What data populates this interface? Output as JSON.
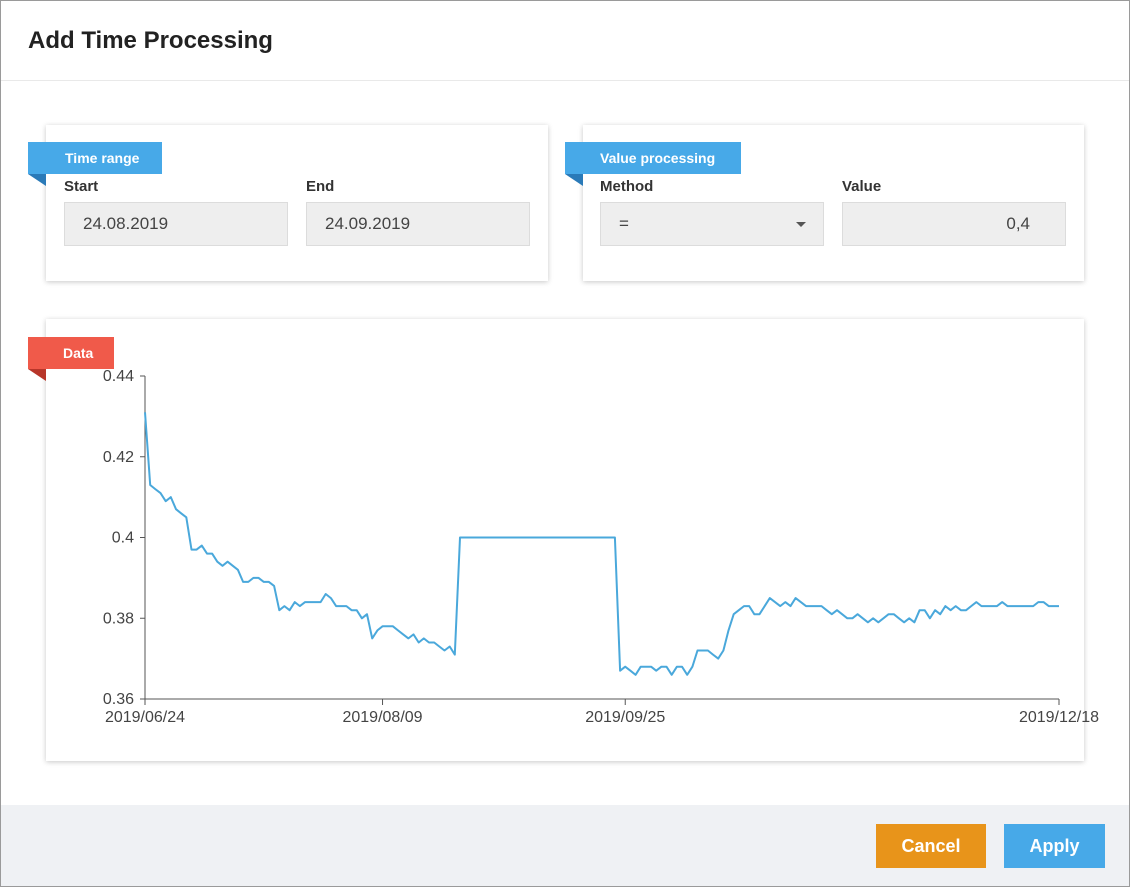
{
  "dialog": {
    "title": "Add Time Processing"
  },
  "time_range": {
    "tag": "Time range",
    "start_label": "Start",
    "start_value": "24.08.2019",
    "end_label": "End",
    "end_value": "24.09.2019"
  },
  "value_processing": {
    "tag": "Value processing",
    "method_label": "Method",
    "method_value": "=",
    "value_label": "Value",
    "value_value": "0,4"
  },
  "data_panel": {
    "tag": "Data"
  },
  "footer": {
    "cancel_label": "Cancel",
    "apply_label": "Apply"
  },
  "colors": {
    "accent_blue": "#47a9e8",
    "data_red": "#f05a4a",
    "cancel_orange": "#e8941a",
    "line": "#4aa8db"
  },
  "chart_data": {
    "type": "line",
    "title": "",
    "xlabel": "",
    "ylabel": "",
    "x_ticks": [
      "2019/06/24",
      "2019/08/09",
      "2019/09/25",
      "2019/12/18"
    ],
    "y_ticks": [
      "0.36",
      "0.38",
      "0.4",
      "0.42",
      "0.44"
    ],
    "ylim": [
      0.36,
      0.44
    ],
    "xlim": [
      "2019-06-24",
      "2019-12-18"
    ],
    "grid": false,
    "series": [
      {
        "x": [
          "2019-06-24",
          "2019-06-25",
          "2019-06-26",
          "2019-06-27",
          "2019-06-28",
          "2019-06-29",
          "2019-06-30",
          "2019-07-01",
          "2019-07-02",
          "2019-07-03",
          "2019-07-04",
          "2019-07-05",
          "2019-07-06",
          "2019-07-07",
          "2019-07-08",
          "2019-07-09",
          "2019-07-10",
          "2019-07-11",
          "2019-07-12",
          "2019-07-13",
          "2019-07-14",
          "2019-07-15",
          "2019-07-16",
          "2019-07-17",
          "2019-07-18",
          "2019-07-19",
          "2019-07-20",
          "2019-07-21",
          "2019-07-22",
          "2019-07-23",
          "2019-07-24",
          "2019-07-25",
          "2019-07-26",
          "2019-07-27",
          "2019-07-28",
          "2019-07-29",
          "2019-07-30",
          "2019-07-31",
          "2019-08-01",
          "2019-08-02",
          "2019-08-03",
          "2019-08-04",
          "2019-08-05",
          "2019-08-06",
          "2019-08-07",
          "2019-08-08",
          "2019-08-09",
          "2019-08-10",
          "2019-08-11",
          "2019-08-12",
          "2019-08-13",
          "2019-08-14",
          "2019-08-15",
          "2019-08-16",
          "2019-08-17",
          "2019-08-18",
          "2019-08-19",
          "2019-08-20",
          "2019-08-21",
          "2019-08-22",
          "2019-08-23",
          "2019-08-24",
          "2019-09-23",
          "2019-09-24",
          "2019-09-25",
          "2019-09-26",
          "2019-09-27",
          "2019-09-28",
          "2019-09-29",
          "2019-09-30",
          "2019-10-01",
          "2019-10-02",
          "2019-10-03",
          "2019-10-04",
          "2019-10-05",
          "2019-10-06",
          "2019-10-07",
          "2019-10-08",
          "2019-10-09",
          "2019-10-10",
          "2019-10-11",
          "2019-10-12",
          "2019-10-13",
          "2019-10-14",
          "2019-10-15",
          "2019-10-16",
          "2019-10-17",
          "2019-10-18",
          "2019-10-19",
          "2019-10-20",
          "2019-10-21",
          "2019-10-22",
          "2019-10-23",
          "2019-10-24",
          "2019-10-25",
          "2019-10-26",
          "2019-10-27",
          "2019-10-28",
          "2019-10-29",
          "2019-10-30",
          "2019-10-31",
          "2019-11-01",
          "2019-11-02",
          "2019-11-03",
          "2019-11-04",
          "2019-11-05",
          "2019-11-06",
          "2019-11-07",
          "2019-11-08",
          "2019-11-09",
          "2019-11-10",
          "2019-11-11",
          "2019-11-12",
          "2019-11-13",
          "2019-11-14",
          "2019-11-15",
          "2019-11-16",
          "2019-11-17",
          "2019-11-18",
          "2019-11-19",
          "2019-11-20",
          "2019-11-21",
          "2019-11-22",
          "2019-11-23",
          "2019-11-24",
          "2019-11-25",
          "2019-11-26",
          "2019-11-27",
          "2019-11-28",
          "2019-11-29",
          "2019-11-30",
          "2019-12-01",
          "2019-12-02",
          "2019-12-03",
          "2019-12-04",
          "2019-12-05",
          "2019-12-06",
          "2019-12-07",
          "2019-12-08",
          "2019-12-09",
          "2019-12-10",
          "2019-12-11",
          "2019-12-12",
          "2019-12-13",
          "2019-12-14",
          "2019-12-15",
          "2019-12-16",
          "2019-12-17",
          "2019-12-18"
        ],
        "y": [
          0.431,
          0.413,
          0.412,
          0.411,
          0.409,
          0.41,
          0.407,
          0.406,
          0.405,
          0.397,
          0.397,
          0.398,
          0.396,
          0.396,
          0.394,
          0.393,
          0.394,
          0.393,
          0.392,
          0.389,
          0.389,
          0.39,
          0.39,
          0.389,
          0.389,
          0.388,
          0.382,
          0.383,
          0.382,
          0.384,
          0.383,
          0.384,
          0.384,
          0.384,
          0.384,
          0.386,
          0.385,
          0.383,
          0.383,
          0.383,
          0.382,
          0.382,
          0.38,
          0.381,
          0.375,
          0.377,
          0.378,
          0.378,
          0.378,
          0.377,
          0.376,
          0.375,
          0.376,
          0.374,
          0.375,
          0.374,
          0.374,
          0.373,
          0.372,
          0.373,
          0.371,
          0.4,
          0.4,
          0.367,
          0.368,
          0.367,
          0.366,
          0.368,
          0.368,
          0.368,
          0.367,
          0.368,
          0.368,
          0.366,
          0.368,
          0.368,
          0.366,
          0.368,
          0.372,
          0.372,
          0.372,
          0.371,
          0.37,
          0.372,
          0.377,
          0.381,
          0.382,
          0.383,
          0.383,
          0.381,
          0.381,
          0.383,
          0.385,
          0.384,
          0.383,
          0.384,
          0.383,
          0.385,
          0.384,
          0.383,
          0.383,
          0.383,
          0.383,
          0.382,
          0.381,
          0.382,
          0.381,
          0.38,
          0.38,
          0.381,
          0.38,
          0.379,
          0.38,
          0.379,
          0.38,
          0.381,
          0.381,
          0.38,
          0.379,
          0.38,
          0.379,
          0.382,
          0.382,
          0.38,
          0.382,
          0.381,
          0.383,
          0.382,
          0.383,
          0.382,
          0.382,
          0.383,
          0.384,
          0.383,
          0.383,
          0.383,
          0.383,
          0.384,
          0.383,
          0.383,
          0.383,
          0.383,
          0.383,
          0.383,
          0.384,
          0.384,
          0.383,
          0.383,
          0.383
        ]
      }
    ]
  }
}
